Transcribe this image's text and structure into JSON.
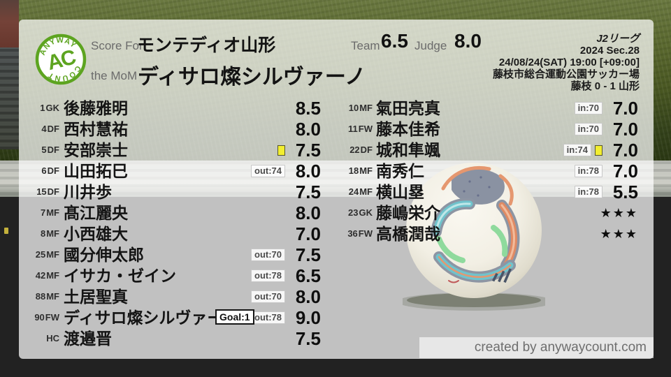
{
  "logo": {
    "arc_top": "ANYWAY",
    "arc_bottom": "COUNT",
    "monogram": "AC",
    "color": "#5da420"
  },
  "header": {
    "score_for_label": "Score For",
    "team_name": "モンテディオ山形",
    "mom_label": "the MoM",
    "mom_name": "ディサロ燦シルヴァーノ",
    "team_label": "Team",
    "team_score": "6.5",
    "judge_label": "Judge",
    "judge_score": "8.0",
    "league": "J2リーグ",
    "season_round": "2024 Sec.28",
    "datetime": "24/08/24(SAT) 19:00 [+09:00]",
    "venue": "藤枝市総合運動公園サッカー場",
    "result": "藤枝 0 - 1 山形"
  },
  "players": {
    "starters": [
      {
        "num": "1",
        "pos": "GK",
        "name": "後藤雅明",
        "score": "8.5"
      },
      {
        "num": "4",
        "pos": "DF",
        "name": "西村慧祐",
        "score": "8.0"
      },
      {
        "num": "5",
        "pos": "DF",
        "name": "安部崇士",
        "score": "7.5",
        "yellow": true
      },
      {
        "num": "6",
        "pos": "DF",
        "name": "山田拓巳",
        "score": "8.0",
        "badge": "out:74"
      },
      {
        "num": "15",
        "pos": "DF",
        "name": "川井歩",
        "score": "7.5"
      },
      {
        "num": "7",
        "pos": "MF",
        "name": "髙江麗央",
        "score": "8.0"
      },
      {
        "num": "8",
        "pos": "MF",
        "name": "小西雄大",
        "score": "7.0"
      },
      {
        "num": "25",
        "pos": "MF",
        "name": "國分伸太郎",
        "score": "7.5",
        "badge": "out:70"
      },
      {
        "num": "42",
        "pos": "MF",
        "name": "イサカ・ゼイン",
        "score": "6.5",
        "badge": "out:78"
      },
      {
        "num": "88",
        "pos": "MF",
        "name": "土居聖真",
        "score": "8.0",
        "badge": "out:70"
      },
      {
        "num": "90",
        "pos": "FW",
        "name": "ディサロ燦シルヴァーノ",
        "score": "9.0",
        "badge": "out:78",
        "goal": "Goal:1"
      },
      {
        "num": "",
        "pos": "HC",
        "name": "渡邉晋",
        "score": "7.5"
      }
    ],
    "bench": [
      {
        "num": "10",
        "pos": "MF",
        "name": "氣田亮真",
        "score": "7.0",
        "badge": "in:70"
      },
      {
        "num": "11",
        "pos": "FW",
        "name": "藤本佳希",
        "score": "7.0",
        "badge": "in:70"
      },
      {
        "num": "22",
        "pos": "DF",
        "name": "城和隼颯",
        "score": "7.0",
        "badge": "in:74",
        "yellow": true
      },
      {
        "num": "18",
        "pos": "MF",
        "name": "南秀仁",
        "score": "7.0",
        "badge": "in:78"
      },
      {
        "num": "24",
        "pos": "MF",
        "name": "横山塁",
        "score": "5.5",
        "badge": "in:78"
      },
      {
        "num": "23",
        "pos": "GK",
        "name": "藤嶋栄介",
        "score": "★★★",
        "stars": true
      },
      {
        "num": "36",
        "pos": "FW",
        "name": "高橋潤哉",
        "score": "★★★",
        "stars": true
      }
    ]
  },
  "footer": {
    "credit": "created by anywaycount.com"
  },
  "colors": {
    "accent_green": "#5da420",
    "yellow_card": "#f2ee30"
  }
}
